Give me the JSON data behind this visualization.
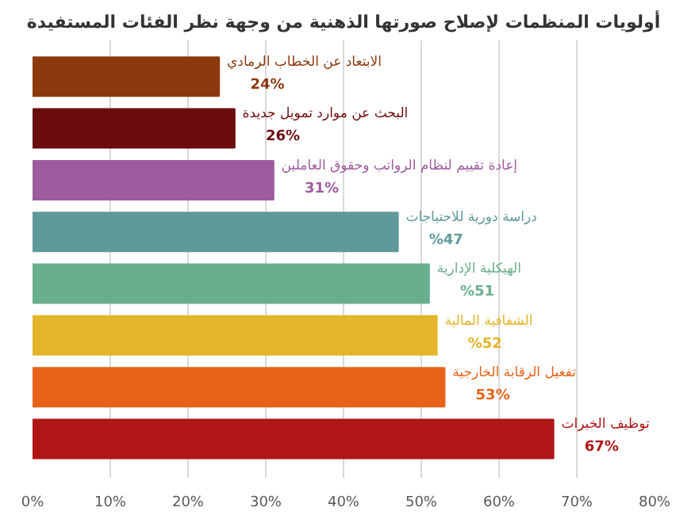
{
  "chart_data": {
    "type": "bar",
    "orientation": "horizontal",
    "title": "أولويات المنظمات لإصلاح صورتها الذهنية من وجهة نظر الفئات المستفيدة",
    "categories": [
      "الابتعاد عن الخطاب الرمادي",
      "البحث عن موارد تمويل جديدة",
      "إعادة تقييم لنظام الرواتب  وحقوق العاملين",
      "دراسة دورية للاحتياجات",
      "الهيكلية الإدارية",
      "الشفافية المالية",
      "تفعيل الرقابة الخارجية",
      "توظيف الخبرات"
    ],
    "values": [
      24,
      26,
      31,
      47,
      51,
      52,
      53,
      67
    ],
    "value_labels": [
      "24%",
      "26%",
      "31%",
      "%47",
      "%51",
      "%52",
      "53%",
      "67%"
    ],
    "colors": [
      "#8b3a0e",
      "#6b0d0d",
      "#9e5c9e",
      "#5f9a9a",
      "#6aaf8d",
      "#e3b52a",
      "#e8631a",
      "#b01616"
    ],
    "xlim": [
      0,
      80
    ],
    "xticks": [
      {
        "value": 0,
        "label": "0%"
      },
      {
        "value": 10,
        "label": "10%"
      },
      {
        "value": 20,
        "label": "20%"
      },
      {
        "value": 30,
        "label": "30%"
      },
      {
        "value": 40,
        "label": "40%"
      },
      {
        "value": 50,
        "label": "50%"
      },
      {
        "value": 60,
        "label": "60%"
      },
      {
        "value": 70,
        "label": "70%"
      },
      {
        "value": 80,
        "label": "80%"
      }
    ],
    "tick_labels": "x",
    "grid": "x"
  }
}
